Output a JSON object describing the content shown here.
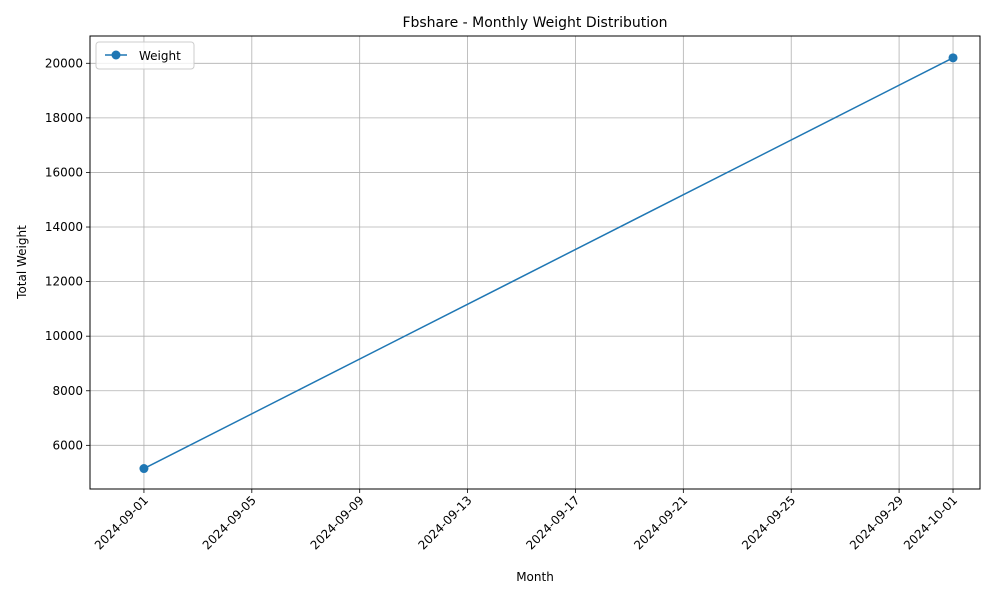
{
  "chart_data": {
    "type": "line",
    "title": "Fbshare - Monthly Weight Distribution",
    "xlabel": "Month",
    "ylabel": "Total Weight",
    "x_ticks": [
      "2024-09-01",
      "2024-09-05",
      "2024-09-09",
      "2024-09-13",
      "2024-09-17",
      "2024-09-21",
      "2024-09-25",
      "2024-09-29",
      "2024-10-01"
    ],
    "x_range": [
      "2024-08-30",
      "2024-10-02"
    ],
    "y_ticks": [
      6000,
      8000,
      10000,
      12000,
      14000,
      16000,
      18000,
      20000
    ],
    "ylim": [
      4400,
      21000
    ],
    "grid": true,
    "legend_position": "top-left",
    "series": [
      {
        "name": "Weight",
        "color": "#1f77b4",
        "marker": "circle",
        "points": [
          {
            "x": "2024-09-01",
            "y": 5150
          },
          {
            "x": "2024-10-01",
            "y": 20200
          }
        ]
      }
    ]
  }
}
